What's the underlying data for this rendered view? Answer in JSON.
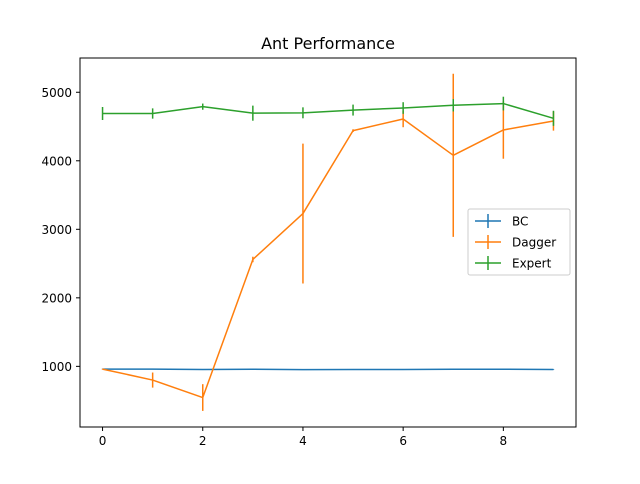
{
  "chart_data": {
    "type": "line",
    "title": "Ant Performance",
    "xlabel": "",
    "ylabel": "",
    "x": [
      0,
      1,
      2,
      3,
      4,
      5,
      6,
      7,
      8,
      9
    ],
    "xlim": [
      -0.45,
      9.45
    ],
    "ylim": [
      115,
      5500
    ],
    "xticks": [
      0,
      2,
      4,
      6,
      8
    ],
    "yticks": [
      1000,
      2000,
      3000,
      4000,
      5000
    ],
    "grid": false,
    "legend_position": "center-right",
    "series": [
      {
        "name": "BC",
        "color": "#1f77b4",
        "values": [
          960,
          960,
          955,
          958,
          953,
          955,
          955,
          958,
          958,
          955
        ],
        "errors": [
          5,
          5,
          5,
          5,
          5,
          5,
          5,
          5,
          5,
          5
        ]
      },
      {
        "name": "Dagger",
        "color": "#ff7f0e",
        "values": [
          960,
          800,
          545,
          2560,
          3230,
          4440,
          4610,
          4080,
          4450,
          4580
        ],
        "errors": [
          5,
          110,
          195,
          40,
          1020,
          20,
          120,
          1190,
          420,
          140
        ]
      },
      {
        "name": "Expert",
        "color": "#2ca02c",
        "values": [
          4690,
          4690,
          4790,
          4695,
          4700,
          4740,
          4770,
          4810,
          4835,
          4620
        ],
        "errors": [
          95,
          75,
          45,
          110,
          80,
          80,
          85,
          90,
          100,
          110
        ]
      }
    ]
  }
}
